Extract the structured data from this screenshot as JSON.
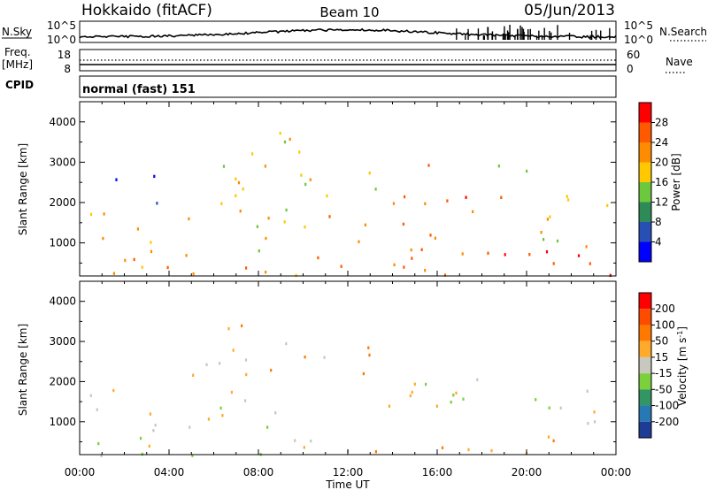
{
  "header": {
    "station": "Hokkaido (fitACF)",
    "beam": "Beam 10",
    "date": "05/Jun/2013"
  },
  "noise_panel": {
    "left_label": "N.Sky",
    "left_ticks": [
      "10^5",
      "10^0"
    ],
    "right_label": "N.Search",
    "right_ticks": [
      "10^5",
      "10^0"
    ]
  },
  "freq_panel": {
    "left_label_1": "Freq.",
    "left_label_2": "[MHz]",
    "left_ticks": [
      "18",
      "8"
    ],
    "right_label": "Nave",
    "right_ticks": [
      "60",
      "0"
    ]
  },
  "cpid_panel": {
    "label": "CPID",
    "text": "normal (fast) 151"
  },
  "x_axis": {
    "label": "Time UT",
    "ticks": [
      "00:00",
      "04:00",
      "08:00",
      "12:00",
      "16:00",
      "20:00",
      "00:00"
    ]
  },
  "chart_data": [
    {
      "type": "heatmap",
      "name": "power_panel",
      "ylabel": "Slant Range [km]",
      "xlabel": "",
      "x_range_hours": [
        0,
        24
      ],
      "ylim_km": [
        180,
        4500
      ],
      "y_ticks": [
        1000,
        2000,
        3000,
        4000
      ],
      "colorbar": {
        "label": "Power [dB]",
        "ticks": [
          "28",
          "24",
          "20",
          "16",
          "12",
          "8",
          "4"
        ],
        "range": [
          0,
          32
        ],
        "colors": [
          "#0000ff",
          "#2850b4",
          "#2e8b57",
          "#6cc83c",
          "#ffc800",
          "#ff8c00",
          "#ff5a00",
          "#ff0000"
        ]
      },
      "echo_regions": [
        {
          "x0": 0.0,
          "x1": 12.5,
          "y0": 180,
          "y1": 800,
          "level": 5
        },
        {
          "x0": 0.0,
          "x1": 10.0,
          "y0": 800,
          "y1": 1900,
          "level": 4
        },
        {
          "x0": 1.3,
          "x1": 3.5,
          "y0": 1900,
          "y1": 2900,
          "level": 1
        },
        {
          "x0": 5.0,
          "x1": 6.5,
          "y0": 2000,
          "y1": 3200,
          "level": 3
        },
        {
          "x0": 6.5,
          "x1": 13.5,
          "y0": 2000,
          "y1": 3800,
          "level": 4
        },
        {
          "x0": 10.0,
          "x1": 13.0,
          "y0": 180,
          "y1": 1700,
          "level": 5
        },
        {
          "x0": 13.5,
          "x1": 16.0,
          "y0": 180,
          "y1": 3000,
          "level": 5
        },
        {
          "x0": 16.0,
          "x1": 21.0,
          "y0": 1500,
          "y1": 2200,
          "level": 6
        },
        {
          "x0": 13.0,
          "x1": 24.0,
          "y0": 180,
          "y1": 900,
          "level": 6
        },
        {
          "x0": 18.0,
          "x1": 20.0,
          "y0": 2500,
          "y1": 3400,
          "level": 3
        },
        {
          "x0": 20.0,
          "x1": 24.0,
          "y0": 900,
          "y1": 2200,
          "level": 4
        }
      ]
    },
    {
      "type": "heatmap",
      "name": "velocity_panel",
      "ylabel": "Slant Range [km]",
      "xlabel": "Time UT",
      "x_range_hours": [
        0,
        24
      ],
      "ylim_km": [
        180,
        4500
      ],
      "y_ticks": [
        1000,
        2000,
        3000,
        4000
      ],
      "colorbar": {
        "label": "Velocity [m s^-1]",
        "ticks": [
          "200",
          "100",
          "50",
          "15",
          "-15",
          "-50",
          "-100",
          "-200"
        ],
        "colors": [
          "#1e3c96",
          "#2878b4",
          "#329664",
          "#7ad13c",
          "#c8c8be",
          "#ffaa2a",
          "#ff7800",
          "#ff4b00",
          "#ff0000"
        ]
      },
      "echo_regions": [
        {
          "x0": 0.0,
          "x1": 12.0,
          "y0": 180,
          "y1": 800,
          "level": 4
        },
        {
          "x0": 0.0,
          "x1": 9.5,
          "y0": 800,
          "y1": 1900,
          "level": 4
        },
        {
          "x0": 5.0,
          "x1": 13.0,
          "y0": 2000,
          "y1": 3600,
          "level": 5
        },
        {
          "x0": 12.0,
          "x1": 17.0,
          "y0": 800,
          "y1": 2000,
          "level": 4
        },
        {
          "x0": 17.0,
          "x1": 20.0,
          "y0": 1600,
          "y1": 2200,
          "level": 3
        },
        {
          "x0": 13.0,
          "x1": 24.0,
          "y0": 180,
          "y1": 700,
          "level": 5
        },
        {
          "x0": 19.5,
          "x1": 24.0,
          "y0": 900,
          "y1": 2000,
          "level": 4
        }
      ]
    }
  ]
}
